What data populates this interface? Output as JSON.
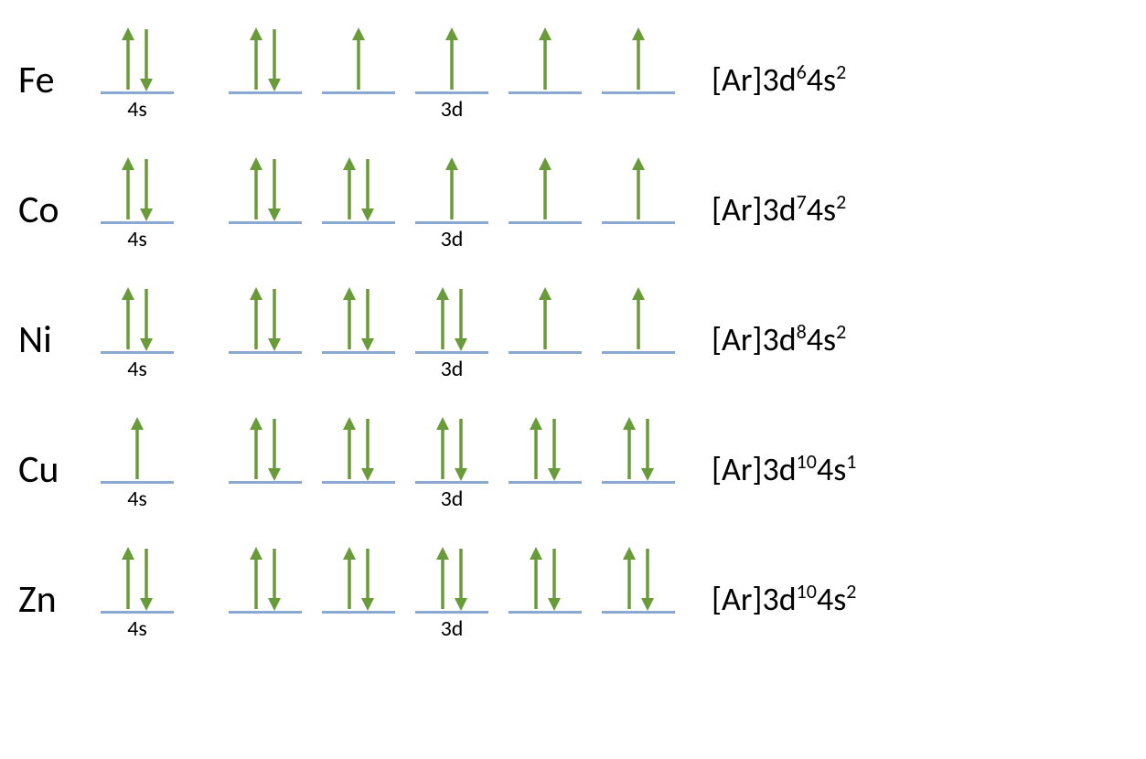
{
  "arrow_color": "#6a9b3b",
  "line_color": "#8aa8d0",
  "label_4s": "4s",
  "label_3d": "3d",
  "elements": [
    {
      "symbol": "Fe",
      "s4": [
        "up",
        "down"
      ],
      "d3": [
        [
          "up",
          "down"
        ],
        [
          "up"
        ],
        [
          "up"
        ],
        [
          "up"
        ],
        [
          "up"
        ]
      ],
      "config_core": "[Ar]",
      "config_parts": [
        [
          "3d",
          "6"
        ],
        [
          "4s",
          "2"
        ]
      ]
    },
    {
      "symbol": "Co",
      "s4": [
        "up",
        "down"
      ],
      "d3": [
        [
          "up",
          "down"
        ],
        [
          "up",
          "down"
        ],
        [
          "up"
        ],
        [
          "up"
        ],
        [
          "up"
        ]
      ],
      "config_core": "[Ar]",
      "config_parts": [
        [
          "3d",
          "7"
        ],
        [
          "4s",
          "2"
        ]
      ]
    },
    {
      "symbol": "Ni",
      "s4": [
        "up",
        "down"
      ],
      "d3": [
        [
          "up",
          "down"
        ],
        [
          "up",
          "down"
        ],
        [
          "up",
          "down"
        ],
        [
          "up"
        ],
        [
          "up"
        ]
      ],
      "config_core": "[Ar]",
      "config_parts": [
        [
          "3d",
          "8"
        ],
        [
          "4s",
          "2"
        ]
      ]
    },
    {
      "symbol": "Cu",
      "s4": [
        "up"
      ],
      "d3": [
        [
          "up",
          "down"
        ],
        [
          "up",
          "down"
        ],
        [
          "up",
          "down"
        ],
        [
          "up",
          "down"
        ],
        [
          "up",
          "down"
        ]
      ],
      "config_core": "[Ar]",
      "config_parts": [
        [
          "3d",
          "10"
        ],
        [
          "4s",
          "1"
        ]
      ]
    },
    {
      "symbol": "Zn",
      "s4": [
        "up",
        "down"
      ],
      "d3": [
        [
          "up",
          "down"
        ],
        [
          "up",
          "down"
        ],
        [
          "up",
          "down"
        ],
        [
          "up",
          "down"
        ],
        [
          "up",
          "down"
        ]
      ],
      "config_core": "[Ar]",
      "config_parts": [
        [
          "3d",
          "10"
        ],
        [
          "4s",
          "2"
        ]
      ]
    }
  ]
}
